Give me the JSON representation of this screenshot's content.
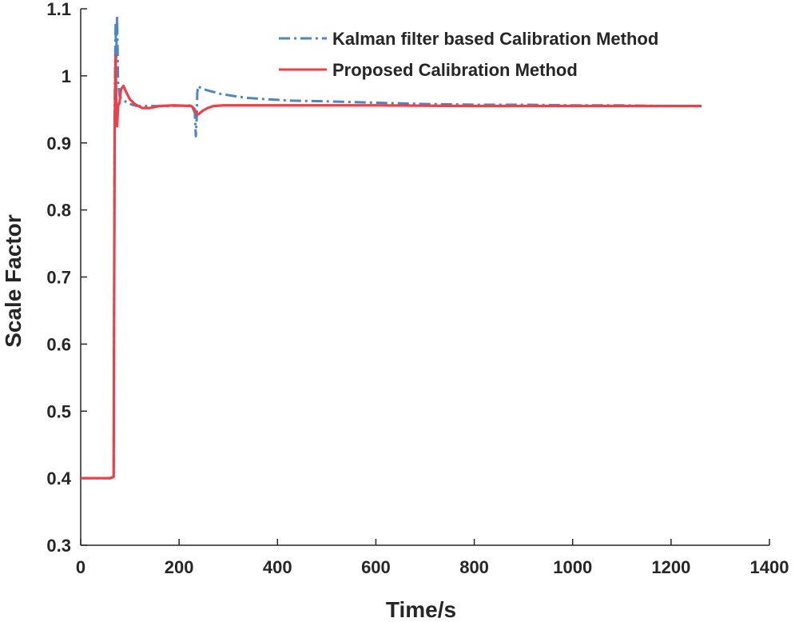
{
  "chart_data": {
    "type": "line",
    "title": "",
    "xlabel": "Time/s",
    "ylabel": "Scale Factor",
    "xlim": [
      0,
      1400
    ],
    "ylim": [
      0.3,
      1.1
    ],
    "xticks": [
      0,
      200,
      400,
      600,
      800,
      1000,
      1200,
      1400
    ],
    "xtick_labels": [
      "0",
      "200",
      "400",
      "600",
      "800",
      "1000",
      "1200",
      "1400"
    ],
    "yticks": [
      0.3,
      0.4,
      0.5,
      0.6,
      0.7,
      0.8,
      0.9,
      1.0,
      1.1
    ],
    "ytick_labels": [
      "0.3",
      "0.4",
      "0.5",
      "0.6",
      "0.7",
      "0.8",
      "0.9",
      "1",
      "1.1"
    ],
    "grid": false,
    "legend_position": "top-right",
    "series": [
      {
        "name": "Kalman filter based Calibration Method",
        "style": "dash-dot",
        "color": "#4f86c0",
        "x": [
          0,
          60,
          67,
          69,
          71,
          72,
          74,
          76,
          79,
          83,
          90,
          100,
          115,
          140,
          180,
          225,
          232,
          234,
          236,
          237,
          239,
          242,
          250,
          265,
          285,
          310,
          340,
          380,
          430,
          500,
          600,
          700,
          800,
          900,
          1000,
          1100,
          1200,
          1262
        ],
        "y": [
          0.4,
          0.4,
          0.402,
          0.95,
          1.08,
          1.02,
          1.09,
          0.99,
          0.97,
          0.965,
          0.962,
          0.958,
          0.955,
          0.955,
          0.955,
          0.956,
          0.945,
          0.91,
          0.94,
          0.975,
          0.985,
          0.983,
          0.98,
          0.977,
          0.973,
          0.97,
          0.967,
          0.965,
          0.963,
          0.962,
          0.96,
          0.958,
          0.957,
          0.957,
          0.956,
          0.956,
          0.955,
          0.955
        ]
      },
      {
        "name": "Proposed Calibration Method",
        "style": "solid",
        "color": "#e8424a",
        "x": [
          0,
          60,
          67,
          69,
          71,
          72,
          74,
          76,
          79,
          82,
          87,
          93,
          100,
          110,
          125,
          140,
          160,
          190,
          225,
          232,
          236,
          240,
          248,
          258,
          270,
          290,
          320,
          400,
          600,
          800,
          1000,
          1262
        ],
        "y": [
          0.4,
          0.4,
          0.402,
          0.92,
          1.03,
          0.975,
          0.925,
          0.955,
          0.96,
          0.98,
          0.985,
          0.975,
          0.965,
          0.958,
          0.952,
          0.952,
          0.955,
          0.956,
          0.955,
          0.95,
          0.942,
          0.943,
          0.948,
          0.952,
          0.955,
          0.956,
          0.956,
          0.956,
          0.956,
          0.955,
          0.955,
          0.955
        ]
      }
    ]
  }
}
